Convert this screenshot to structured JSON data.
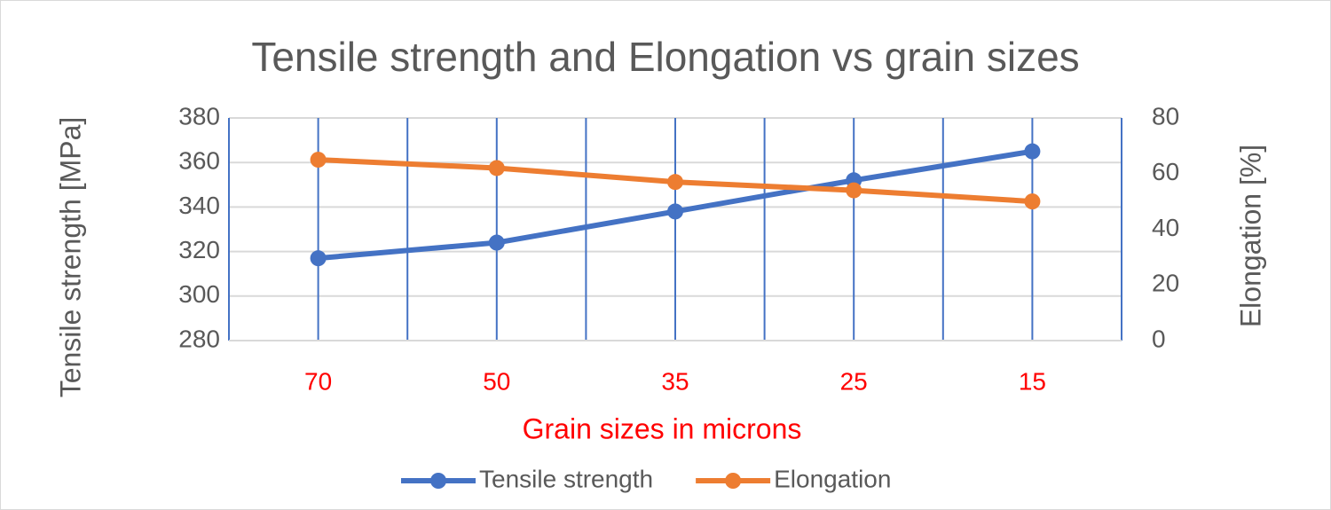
{
  "chart_data": {
    "type": "line",
    "title": "Tensile strength and Elongation vs grain sizes",
    "x_label": "Grain sizes in microns",
    "y_label": "Tensile strength [MPa]",
    "y2_label": "Elongation [%]",
    "categories": [
      "70",
      "50",
      "35",
      "25",
      "15"
    ],
    "series": [
      {
        "name": "Tensile strength",
        "color": "#4472c4",
        "values": [
          317,
          324,
          338,
          352,
          365
        ]
      },
      {
        "name": "Elongation",
        "color": "#ed7d31",
        "axis": "y2",
        "values": [
          65,
          62,
          57,
          54,
          50
        ]
      }
    ],
    "ylim": [
      280,
      380
    ],
    "yticks": [
      280,
      300,
      320,
      340,
      360,
      380
    ],
    "y2lim": [
      0,
      80
    ],
    "y2ticks": [
      0,
      20,
      40,
      60,
      80
    ],
    "grid": true,
    "legend": "bottom"
  }
}
